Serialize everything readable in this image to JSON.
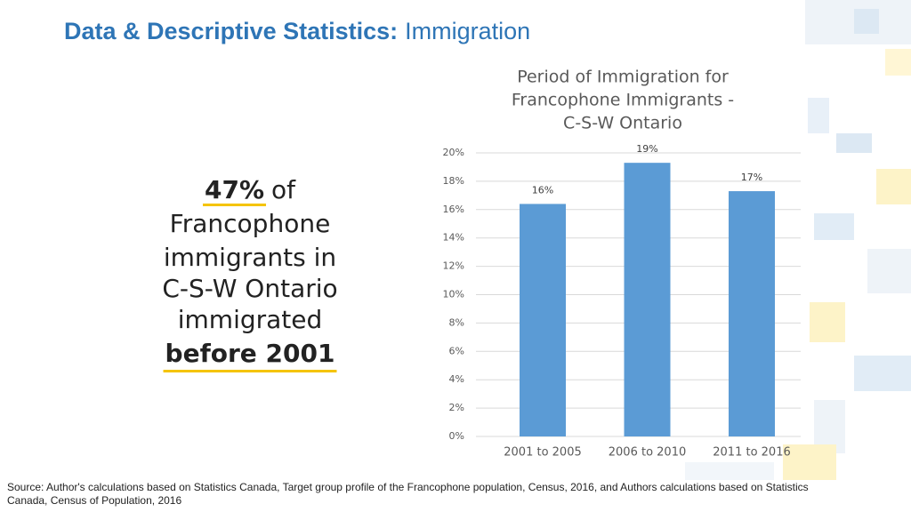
{
  "header": {
    "title_bold": "Data & Descriptive Statistics:",
    "title_rest": "Immigration"
  },
  "callout": {
    "highlight": "47%",
    "lines": [
      "of",
      "Francophone",
      "immigrants in",
      "C-S-W Ontario",
      "immigrated"
    ],
    "emphasis": "before 2001"
  },
  "chart_data": {
    "type": "bar",
    "title": [
      "Period of Immigration for",
      "Francophone Immigrants -",
      "C-S-W Ontario"
    ],
    "categories": [
      "2001 to 2005",
      "2006 to 2010",
      "2011 to 2016"
    ],
    "values": [
      16.4,
      19.3,
      17.3
    ],
    "value_labels": [
      "16%",
      "19%",
      "17%"
    ],
    "color": "#5b9bd5",
    "ylim": [
      0,
      20
    ],
    "yticks": [
      {
        "value": 0,
        "label": "0%"
      },
      {
        "value": 2,
        "label": "2%"
      },
      {
        "value": 4,
        "label": "4%"
      },
      {
        "value": 6,
        "label": "6%"
      },
      {
        "value": 8,
        "label": "8%"
      },
      {
        "value": 10,
        "label": "10%"
      },
      {
        "value": 12,
        "label": "12%"
      },
      {
        "value": 14,
        "label": "14%"
      },
      {
        "value": 16,
        "label": "16%"
      },
      {
        "value": 18,
        "label": "18%"
      },
      {
        "value": 20,
        "label": "20%"
      }
    ],
    "grid": true
  },
  "source": "Source: Author's calculations based on Statistics Canada, Target group profile of the Francophone population, Census, 2016, and Authors calculations based on Statistics Canada, Census of Population, 2016"
}
